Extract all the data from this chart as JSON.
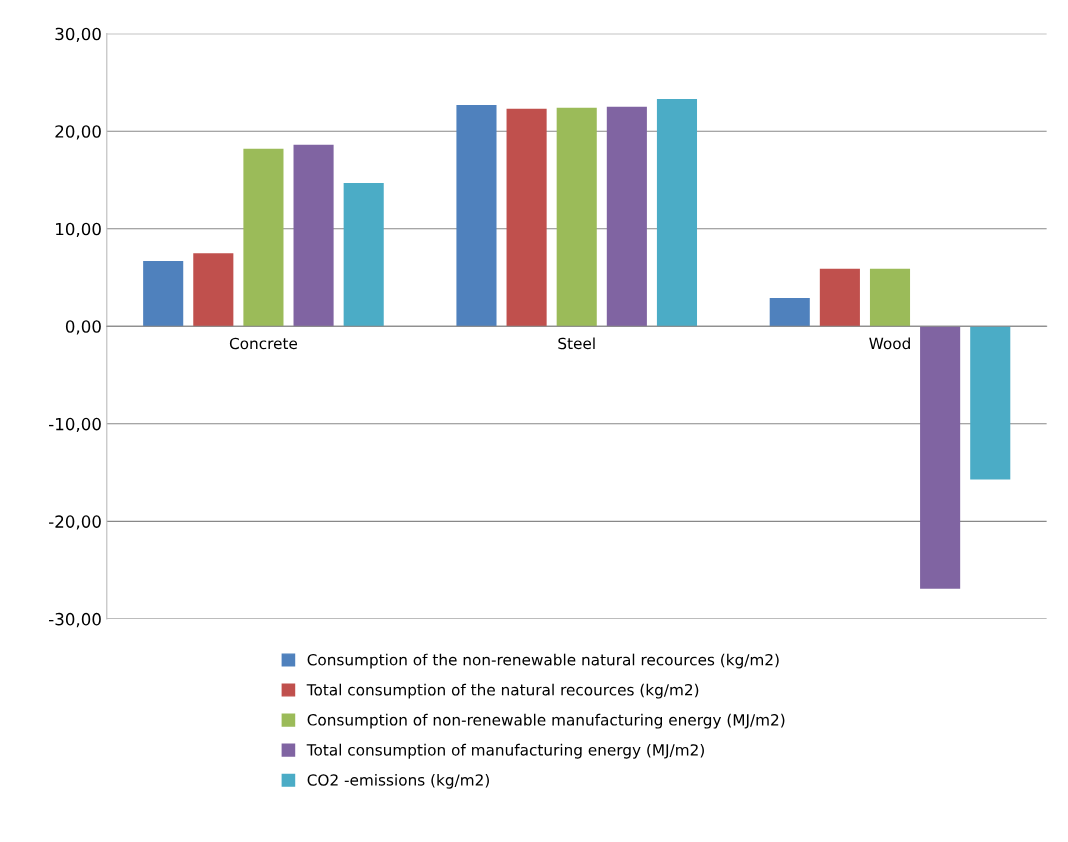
{
  "chart_data": {
    "type": "bar",
    "categories": [
      "Concrete",
      "Steel",
      "Wood"
    ],
    "series": [
      {
        "name": "Consumption of the non-renewable natural recources (kg/m2)",
        "color": "#4f81bd",
        "values": [
          6.7,
          22.7,
          2.9
        ]
      },
      {
        "name": "Total consumption of the natural recources (kg/m2)",
        "color": "#c0504d",
        "values": [
          7.5,
          22.3,
          5.9
        ]
      },
      {
        "name": "Consumption of non-renewable manufacturing energy (MJ/m2)",
        "color": "#9bbb59",
        "values": [
          18.2,
          22.4,
          5.9
        ]
      },
      {
        "name": "Total consumption of manufacturing energy (MJ/m2)",
        "color": "#8064a2",
        "values": [
          18.6,
          22.5,
          -26.9
        ]
      },
      {
        "name": "CO2 -emissions (kg/m2)",
        "color": "#4bacc6",
        "values": [
          14.7,
          23.3,
          -15.7
        ]
      }
    ],
    "ylim": [
      -30,
      30
    ],
    "yticks": [
      {
        "value": -30,
        "label": "-30,00"
      },
      {
        "value": -20,
        "label": "-20,00"
      },
      {
        "value": -10,
        "label": "-10,00"
      },
      {
        "value": 0,
        "label": "0,00"
      },
      {
        "value": 10,
        "label": "10,00"
      },
      {
        "value": 20,
        "label": "20,00"
      },
      {
        "value": 30,
        "label": "30,00"
      }
    ],
    "grid": "y",
    "legend": "bottom"
  }
}
